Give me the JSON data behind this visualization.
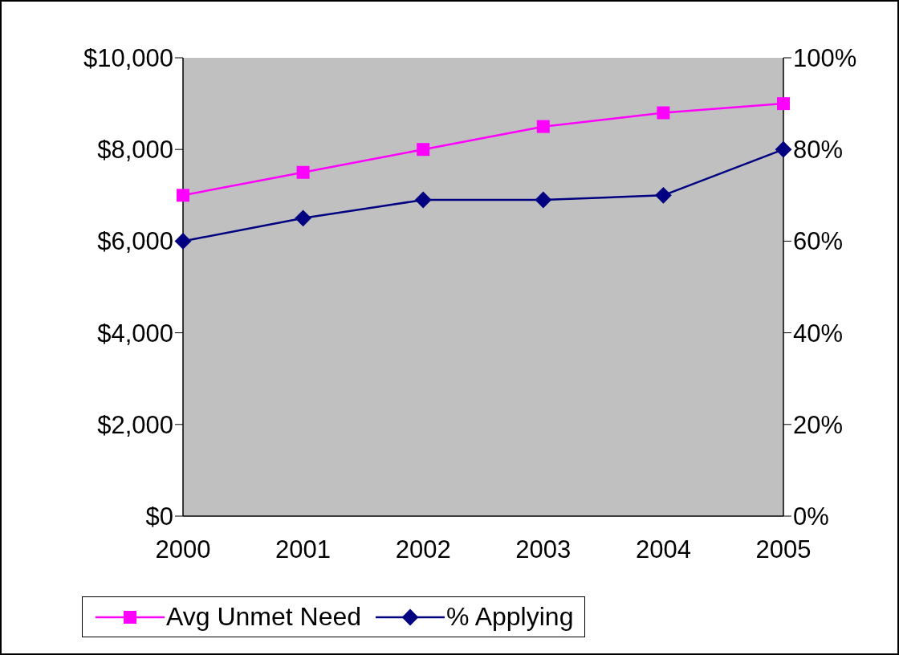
{
  "chart_data": {
    "type": "line",
    "categories": [
      "2000",
      "2001",
      "2002",
      "2003",
      "2004",
      "2005"
    ],
    "series": [
      {
        "name": "Avg Unmet Need",
        "color": "#ff00ff",
        "marker": "square",
        "values": [
          7000,
          7500,
          8000,
          8500,
          8800,
          9000
        ]
      },
      {
        "name": "% Applying",
        "color": "#000080",
        "marker": "diamond",
        "axis": "y2",
        "values": [
          60,
          65,
          69,
          69,
          70,
          80
        ]
      }
    ],
    "ylim": [
      0,
      10000
    ],
    "yticks": [
      {
        "value": 0,
        "label": "$0"
      },
      {
        "value": 2000,
        "label": "$2,000"
      },
      {
        "value": 4000,
        "label": "$4,000"
      },
      {
        "value": 6000,
        "label": "$6,000"
      },
      {
        "value": 8000,
        "label": "$8,000"
      },
      {
        "value": 10000,
        "label": "$10,000"
      }
    ],
    "y2lim": [
      0,
      100
    ],
    "y2ticks": [
      {
        "value": 0,
        "label": "0%"
      },
      {
        "value": 20,
        "label": "20%"
      },
      {
        "value": 40,
        "label": "40%"
      },
      {
        "value": 60,
        "label": "60%"
      },
      {
        "value": 80,
        "label": "80%"
      },
      {
        "value": 100,
        "label": "100%"
      }
    ],
    "grid": false,
    "legend": "bottom"
  }
}
